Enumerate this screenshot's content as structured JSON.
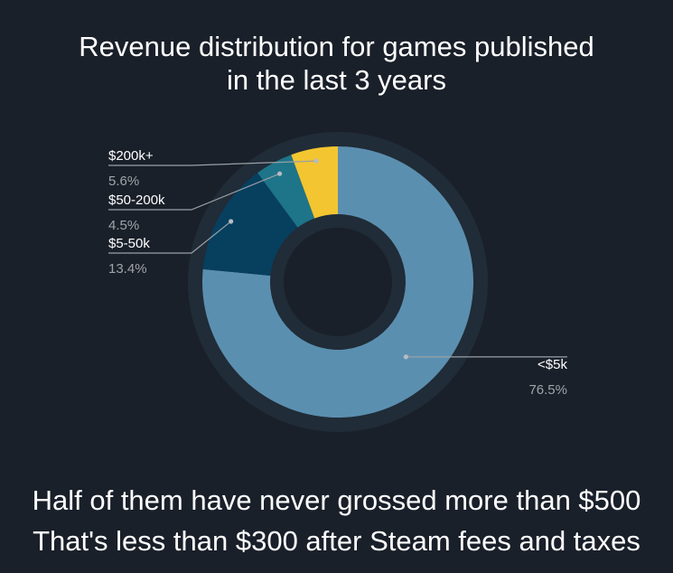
{
  "title_lines": [
    "Revenue distribution for games published",
    "in the last 3 years"
  ],
  "caption_lines": [
    "Half of them have never grossed more than $500",
    "That's less than $300 after Steam fees and taxes"
  ],
  "chart_data": {
    "type": "pie",
    "donut": true,
    "title": "Revenue distribution for games published in the last 3 years",
    "slices": [
      {
        "label": "<$5k",
        "value_label": "76.5%",
        "value": 76.5,
        "color": "#5b8fb0"
      },
      {
        "label": "$5-50k",
        "value_label": "13.4%",
        "value": 13.4,
        "color": "#073f5f"
      },
      {
        "label": "$50-200k",
        "value_label": "4.5%",
        "value": 4.5,
        "color": "#1e7488"
      },
      {
        "label": "$200k+",
        "value_label": "5.6%",
        "value": 5.6,
        "color": "#f3c530"
      }
    ],
    "legend": "callout-labels"
  },
  "colors": {
    "background": "#1a202a",
    "ring_background": "#202c37",
    "label_text": "#ffffff",
    "value_text": "#a0a4aa",
    "leader_line": "#9aa0a6"
  }
}
